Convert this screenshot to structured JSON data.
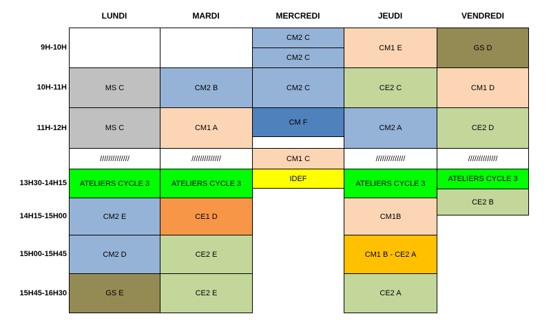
{
  "days": [
    "LUNDI",
    "MARDI",
    "MERCREDI",
    "JEUDI",
    "VENDREDI"
  ],
  "times": [
    "9H-10H",
    "10H-11H",
    "11H-12H",
    "13H30-14H15",
    "14H15-15H00",
    "15H00-15H45",
    "15H45-16H30"
  ],
  "cells": {
    "mon_10": "MS C",
    "mon_11": "MS C",
    "mon_break": "//////////////",
    "mon_1330": "ATELIERS CYCLE 3",
    "mon_1415": "CM2 E",
    "mon_1500": "CM2 D",
    "mon_1545": "GS E",
    "tue_10": "CM2 B",
    "tue_11": "CM1 A",
    "tue_break": "//////////////",
    "tue_1330": "ATELIERS CYCLE 3",
    "tue_1415": "CE1 D",
    "tue_1500": "CE2 E",
    "tue_1545": "CE2 E",
    "wed_9a": "CM2 C",
    "wed_9b": "CM2 C",
    "wed_10": "CM2 C",
    "wed_11": "CM F",
    "wed_break": "CM1 C",
    "wed_1330": "IDEF",
    "thu_9": "CM1 E",
    "thu_10": "CE2 C",
    "thu_11": "CM2 A",
    "thu_break": "//////////////",
    "thu_1330": "ATELIERS CYCLE 3",
    "thu_1415": "CM1B",
    "thu_1500": "CM1 B - CE2 A",
    "thu_1545": "CE2 A",
    "fri_9": "GS D",
    "fri_10": "CM1 D",
    "fri_11": "CE2 D",
    "fri_break": "//////////////",
    "fri_1330": "ATELIERS CYCLE 3",
    "fri_1415": "CE2 B"
  }
}
